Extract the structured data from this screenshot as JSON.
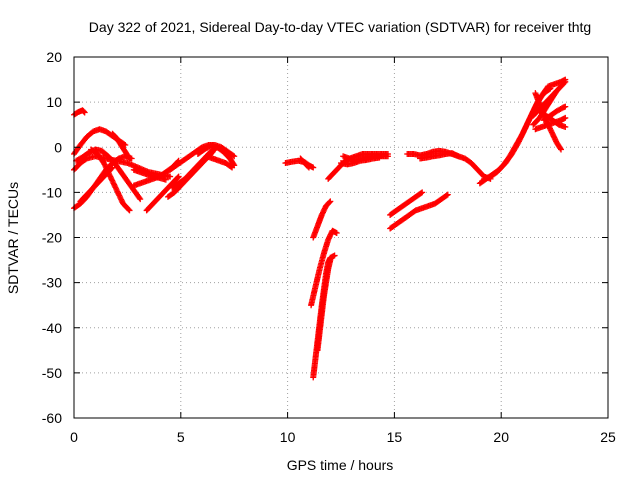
{
  "chart_data": {
    "type": "scatter",
    "title": "Day 322 of 2021, Sidereal Day-to-day VTEC variation (SDTVAR) for receiver thtg",
    "xlabel": "GPS time / hours",
    "ylabel": "SDTVAR / TECUs",
    "xlim": [
      0,
      25
    ],
    "ylim": [
      -60,
      20
    ],
    "xticks": [
      0,
      5,
      10,
      15,
      20,
      25
    ],
    "yticks": [
      -60,
      -50,
      -40,
      -30,
      -20,
      -10,
      0,
      10,
      20
    ],
    "xtick_labels": [
      "0",
      "5",
      "10",
      "15",
      "20",
      "25"
    ],
    "ytick_labels": [
      "-60",
      "-50",
      "-40",
      "-30",
      "-20",
      "-10",
      "0",
      "10",
      "20"
    ],
    "grid": true,
    "legend": "none",
    "marker_color": "#ff0000",
    "series": [
      {
        "x": [
          0.0,
          0.2,
          0.4,
          0.5
        ],
        "y": [
          7.2,
          7.8,
          8.2,
          7.7
        ],
        "points": [
          [
            0.0,
            7.2
          ],
          [
            0.2,
            7.8
          ],
          [
            0.4,
            8.2
          ],
          [
            0.5,
            7.7
          ]
        ]
      },
      {
        "points": [
          [
            0.0,
            -1.5
          ],
          [
            0.3,
            0.5
          ],
          [
            0.6,
            2.3
          ],
          [
            0.9,
            3.5
          ],
          [
            1.2,
            4.0
          ],
          [
            1.5,
            3.5
          ],
          [
            1.8,
            2.5
          ],
          [
            2.1,
            1.5
          ],
          [
            2.4,
            0.5
          ]
        ]
      },
      {
        "points": [
          [
            1.8,
            3.0
          ],
          [
            2.0,
            2.0
          ],
          [
            2.2,
            0.5
          ],
          [
            2.4,
            -1.0
          ],
          [
            2.6,
            -2.5
          ]
        ]
      },
      {
        "points": [
          [
            0.0,
            -5.0
          ],
          [
            0.3,
            -3.5
          ],
          [
            0.6,
            -2.5
          ],
          [
            1.0,
            -2.0
          ],
          [
            1.5,
            -2.5
          ],
          [
            2.0,
            -3.0
          ],
          [
            2.5,
            -3.5
          ],
          [
            3.0,
            -4.5
          ],
          [
            3.5,
            -5.5
          ],
          [
            4.0,
            -6.0
          ],
          [
            4.5,
            -6.5
          ]
        ]
      },
      {
        "points": [
          [
            0.0,
            -13.5
          ],
          [
            0.3,
            -12.5
          ],
          [
            0.6,
            -11.0
          ],
          [
            0.9,
            -9.0
          ],
          [
            1.2,
            -7.0
          ],
          [
            1.5,
            -5.0
          ],
          [
            1.8,
            -3.5
          ],
          [
            2.1,
            -2.5
          ],
          [
            2.4,
            -2.0
          ],
          [
            2.7,
            -2.5
          ]
        ]
      },
      {
        "points": [
          [
            0.3,
            -12.0
          ],
          [
            0.6,
            -10.5
          ],
          [
            0.9,
            -9.0
          ],
          [
            1.2,
            -7.5
          ],
          [
            1.5,
            -6.0
          ],
          [
            1.8,
            -4.5
          ]
        ]
      },
      {
        "points": [
          [
            0.8,
            -0.5
          ],
          [
            1.1,
            -1.5
          ],
          [
            1.4,
            -3.5
          ],
          [
            1.7,
            -6.5
          ],
          [
            2.0,
            -9.5
          ],
          [
            2.3,
            -12.5
          ],
          [
            2.6,
            -14.0
          ]
        ]
      },
      {
        "points": [
          [
            0.1,
            -3.0
          ],
          [
            0.4,
            -2.2
          ],
          [
            0.7,
            -1.2
          ],
          [
            1.0,
            -0.5
          ],
          [
            1.3,
            -0.8
          ],
          [
            1.6,
            -2.0
          ],
          [
            1.9,
            -3.5
          ],
          [
            2.2,
            -5.5
          ],
          [
            2.5,
            -7.5
          ],
          [
            2.8,
            -9.5
          ],
          [
            3.1,
            -11.5
          ]
        ]
      },
      {
        "points": [
          [
            2.8,
            -5.0
          ],
          [
            3.1,
            -5.5
          ],
          [
            3.4,
            -6.0
          ],
          [
            3.7,
            -6.5
          ],
          [
            4.0,
            -6.8
          ],
          [
            4.3,
            -7.2
          ]
        ]
      },
      {
        "points": [
          [
            2.8,
            -8.5
          ],
          [
            3.1,
            -8.0
          ],
          [
            3.4,
            -7.5
          ],
          [
            3.7,
            -7.0
          ],
          [
            4.0,
            -6.5
          ],
          [
            4.3,
            -5.5
          ],
          [
            4.6,
            -4.5
          ],
          [
            4.9,
            -3.0
          ]
        ]
      },
      {
        "points": [
          [
            3.4,
            -14.0
          ],
          [
            3.7,
            -12.5
          ],
          [
            4.0,
            -11.0
          ],
          [
            4.3,
            -9.5
          ],
          [
            4.6,
            -8.0
          ],
          [
            4.9,
            -6.5
          ]
        ]
      },
      {
        "points": [
          [
            4.4,
            -11.0
          ],
          [
            4.7,
            -10.0
          ],
          [
            5.0,
            -8.5
          ],
          [
            5.3,
            -7.0
          ],
          [
            5.6,
            -5.5
          ],
          [
            5.9,
            -4.0
          ],
          [
            6.2,
            -2.5
          ],
          [
            6.5,
            -1.0
          ]
        ]
      },
      {
        "points": [
          [
            4.6,
            -9.0
          ],
          [
            4.9,
            -8.0
          ],
          [
            5.2,
            -7.0
          ],
          [
            5.5,
            -5.5
          ],
          [
            5.8,
            -4.0
          ],
          [
            6.1,
            -2.5
          ],
          [
            6.4,
            -1.0
          ],
          [
            6.7,
            0.0
          ]
        ]
      },
      {
        "points": [
          [
            4.5,
            -5.0
          ],
          [
            4.8,
            -4.0
          ],
          [
            5.1,
            -3.0
          ],
          [
            5.4,
            -2.0
          ],
          [
            5.7,
            -1.0
          ],
          [
            6.0,
            0.0
          ],
          [
            6.3,
            0.5
          ],
          [
            6.6,
            0.5
          ],
          [
            6.9,
            0.0
          ],
          [
            7.2,
            -1.0
          ],
          [
            7.5,
            -2.0
          ]
        ]
      },
      {
        "points": [
          [
            5.8,
            -1.5
          ],
          [
            6.1,
            -0.5
          ],
          [
            6.4,
            0.3
          ],
          [
            6.7,
            0.0
          ],
          [
            7.0,
            -1.0
          ],
          [
            7.3,
            -2.5
          ],
          [
            7.5,
            -4.0
          ]
        ]
      },
      {
        "points": [
          [
            6.2,
            -2.0
          ],
          [
            6.5,
            -2.5
          ],
          [
            6.8,
            -3.0
          ],
          [
            7.1,
            -3.5
          ],
          [
            7.4,
            -4.5
          ]
        ]
      },
      {
        "points": [
          [
            9.9,
            -3.5
          ],
          [
            10.2,
            -3.2
          ],
          [
            10.5,
            -3.0
          ],
          [
            10.8,
            -3.3
          ],
          [
            11.0,
            -4.0
          ],
          [
            11.2,
            -4.5
          ]
        ]
      },
      {
        "points": [
          [
            10.6,
            -2.5
          ],
          [
            10.8,
            -3.5
          ],
          [
            11.0,
            -4.5
          ]
        ]
      },
      {
        "points": [
          [
            11.9,
            -7.0
          ],
          [
            12.1,
            -6.0
          ],
          [
            12.3,
            -5.0
          ],
          [
            12.5,
            -4.0
          ],
          [
            12.7,
            -3.0
          ],
          [
            12.9,
            -2.5
          ],
          [
            13.2,
            -2.0
          ],
          [
            13.5,
            -1.5
          ],
          [
            13.8,
            -1.5
          ],
          [
            14.1,
            -1.5
          ],
          [
            14.4,
            -1.5
          ],
          [
            14.7,
            -1.5
          ]
        ]
      },
      {
        "points": [
          [
            12.6,
            -2.0
          ],
          [
            12.9,
            -2.5
          ],
          [
            13.2,
            -3.0
          ],
          [
            13.5,
            -2.5
          ],
          [
            13.8,
            -2.0
          ],
          [
            14.1,
            -2.0
          ],
          [
            14.4,
            -2.0
          ],
          [
            14.7,
            -2.0
          ]
        ]
      },
      {
        "points": [
          [
            12.5,
            -3.5
          ],
          [
            12.8,
            -3.8
          ],
          [
            13.1,
            -3.5
          ],
          [
            13.4,
            -3.0
          ],
          [
            13.7,
            -2.8
          ],
          [
            14.0,
            -2.5
          ],
          [
            14.3,
            -2.3
          ]
        ]
      },
      {
        "points": [
          [
            11.2,
            -20.0
          ],
          [
            11.4,
            -17.5
          ],
          [
            11.6,
            -15.0
          ],
          [
            11.8,
            -13.0
          ],
          [
            12.0,
            -12.0
          ]
        ]
      },
      {
        "points": [
          [
            11.1,
            -35.0
          ],
          [
            11.3,
            -31.0
          ],
          [
            11.5,
            -27.0
          ],
          [
            11.7,
            -23.5
          ],
          [
            11.9,
            -20.5
          ],
          [
            12.1,
            -18.5
          ],
          [
            12.3,
            -19.0
          ]
        ]
      },
      {
        "points": [
          [
            11.2,
            -51.0
          ],
          [
            11.3,
            -47.0
          ],
          [
            11.4,
            -43.0
          ],
          [
            11.5,
            -39.0
          ],
          [
            11.6,
            -35.0
          ],
          [
            11.7,
            -31.5
          ],
          [
            11.8,
            -28.0
          ],
          [
            11.9,
            -25.5
          ],
          [
            12.0,
            -24.5
          ],
          [
            12.2,
            -24.0
          ]
        ]
      },
      {
        "points": [
          [
            11.4,
            -45.0
          ],
          [
            11.5,
            -41.0
          ],
          [
            11.6,
            -37.0
          ],
          [
            11.7,
            -33.0
          ],
          [
            11.8,
            -30.0
          ],
          [
            11.9,
            -27.0
          ],
          [
            12.0,
            -25.0
          ]
        ]
      },
      {
        "points": [
          [
            15.6,
            -1.5
          ],
          [
            15.9,
            -1.5
          ],
          [
            16.2,
            -1.8
          ],
          [
            16.5,
            -1.5
          ],
          [
            16.8,
            -1.0
          ],
          [
            17.1,
            -0.8
          ],
          [
            17.4,
            -1.0
          ],
          [
            17.7,
            -1.5
          ],
          [
            18.0,
            -2.0
          ]
        ]
      },
      {
        "points": [
          [
            16.2,
            -2.5
          ],
          [
            16.5,
            -2.3
          ],
          [
            16.8,
            -2.0
          ],
          [
            17.1,
            -1.8
          ],
          [
            17.4,
            -1.5
          ],
          [
            17.7,
            -1.3
          ],
          [
            18.0,
            -2.0
          ],
          [
            18.3,
            -2.5
          ],
          [
            18.6,
            -3.5
          ],
          [
            18.9,
            -5.0
          ],
          [
            19.2,
            -6.5
          ],
          [
            19.5,
            -7.0
          ]
        ]
      },
      {
        "points": [
          [
            14.8,
            -15.0
          ],
          [
            15.1,
            -14.0
          ],
          [
            15.4,
            -13.0
          ],
          [
            15.7,
            -12.0
          ],
          [
            16.0,
            -11.0
          ],
          [
            16.3,
            -10.0
          ]
        ]
      },
      {
        "points": [
          [
            14.8,
            -18.0
          ],
          [
            15.1,
            -17.0
          ],
          [
            15.4,
            -16.0
          ],
          [
            15.7,
            -15.0
          ],
          [
            16.0,
            -14.0
          ],
          [
            16.3,
            -13.5
          ],
          [
            16.6,
            -13.0
          ],
          [
            16.9,
            -12.5
          ],
          [
            17.2,
            -11.5
          ],
          [
            17.5,
            -10.5
          ]
        ]
      },
      {
        "points": [
          [
            19.0,
            -8.0
          ],
          [
            19.3,
            -7.0
          ],
          [
            19.6,
            -6.0
          ],
          [
            19.9,
            -5.0
          ],
          [
            20.2,
            -3.5
          ],
          [
            20.5,
            -1.5
          ],
          [
            20.8,
            1.0
          ],
          [
            21.1,
            4.0
          ],
          [
            21.4,
            7.0
          ],
          [
            21.7,
            10.0
          ],
          [
            22.0,
            12.0
          ],
          [
            22.3,
            13.0
          ]
        ]
      },
      {
        "points": [
          [
            19.2,
            -7.0
          ],
          [
            19.5,
            -6.5
          ],
          [
            19.8,
            -5.5
          ],
          [
            20.1,
            -4.0
          ],
          [
            20.4,
            -2.0
          ],
          [
            20.7,
            0.5
          ],
          [
            21.0,
            3.0
          ],
          [
            21.3,
            6.0
          ],
          [
            21.6,
            9.0
          ],
          [
            21.9,
            11.5
          ],
          [
            22.2,
            13.5
          ],
          [
            22.5,
            14.0
          ],
          [
            22.8,
            14.5
          ],
          [
            23.0,
            15.0
          ]
        ]
      },
      {
        "points": [
          [
            21.5,
            7.0
          ],
          [
            21.8,
            8.5
          ],
          [
            22.1,
            10.0
          ],
          [
            22.4,
            11.5
          ],
          [
            22.7,
            13.0
          ],
          [
            23.0,
            14.5
          ]
        ]
      },
      {
        "points": [
          [
            21.5,
            5.0
          ],
          [
            21.8,
            6.5
          ],
          [
            22.0,
            8.0
          ],
          [
            22.2,
            9.5
          ],
          [
            22.4,
            11.0
          ],
          [
            22.6,
            12.5
          ]
        ]
      },
      {
        "points": [
          [
            21.6,
            12.0
          ],
          [
            21.8,
            9.5
          ],
          [
            22.0,
            7.0
          ],
          [
            22.2,
            5.0
          ],
          [
            22.4,
            3.0
          ],
          [
            22.6,
            1.0
          ],
          [
            22.8,
            -0.5
          ]
        ]
      },
      {
        "points": [
          [
            21.6,
            4.0
          ],
          [
            21.9,
            4.5
          ],
          [
            22.2,
            5.0
          ],
          [
            22.5,
            5.5
          ],
          [
            22.8,
            6.0
          ],
          [
            23.0,
            6.5
          ]
        ]
      },
      {
        "points": [
          [
            22.0,
            6.0
          ],
          [
            22.3,
            7.0
          ],
          [
            22.6,
            8.0
          ],
          [
            22.9,
            8.8
          ],
          [
            23.0,
            9.0
          ]
        ]
      },
      {
        "points": [
          [
            21.8,
            8.0
          ],
          [
            22.1,
            7.0
          ],
          [
            22.4,
            6.0
          ],
          [
            22.7,
            5.0
          ],
          [
            23.0,
            4.5
          ]
        ]
      }
    ]
  }
}
